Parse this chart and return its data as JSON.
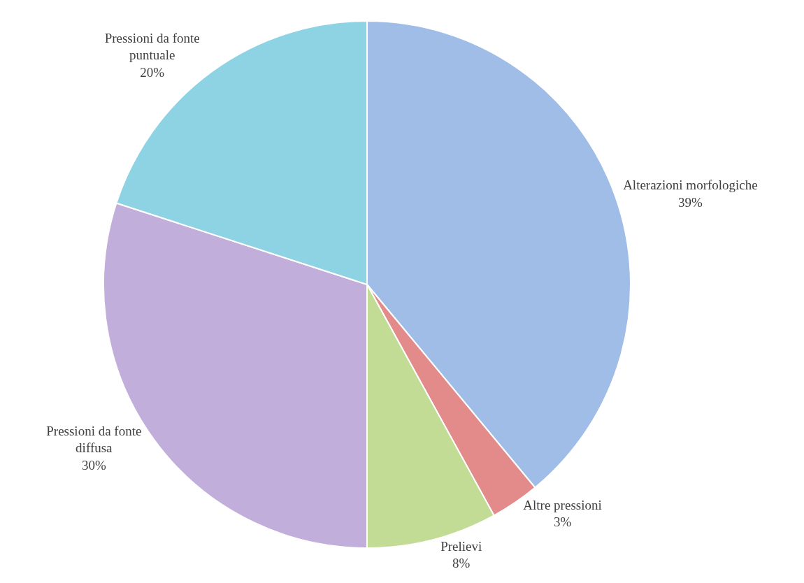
{
  "chart_data": {
    "type": "pie",
    "categories": [
      "Alterazioni morfologiche",
      "Altre pressioni",
      "Prelievi",
      "Pressioni da fonte diffusa",
      "Pressioni da fonte puntuale"
    ],
    "values": [
      39,
      3,
      8,
      30,
      20
    ],
    "value_labels": [
      "39%",
      "3%",
      "8%",
      "30%",
      "20%"
    ],
    "colors": [
      "#9fbde6",
      "#e38b8b",
      "#c3dc95",
      "#c1aedb",
      "#8ed3e3"
    ],
    "legend": false
  }
}
